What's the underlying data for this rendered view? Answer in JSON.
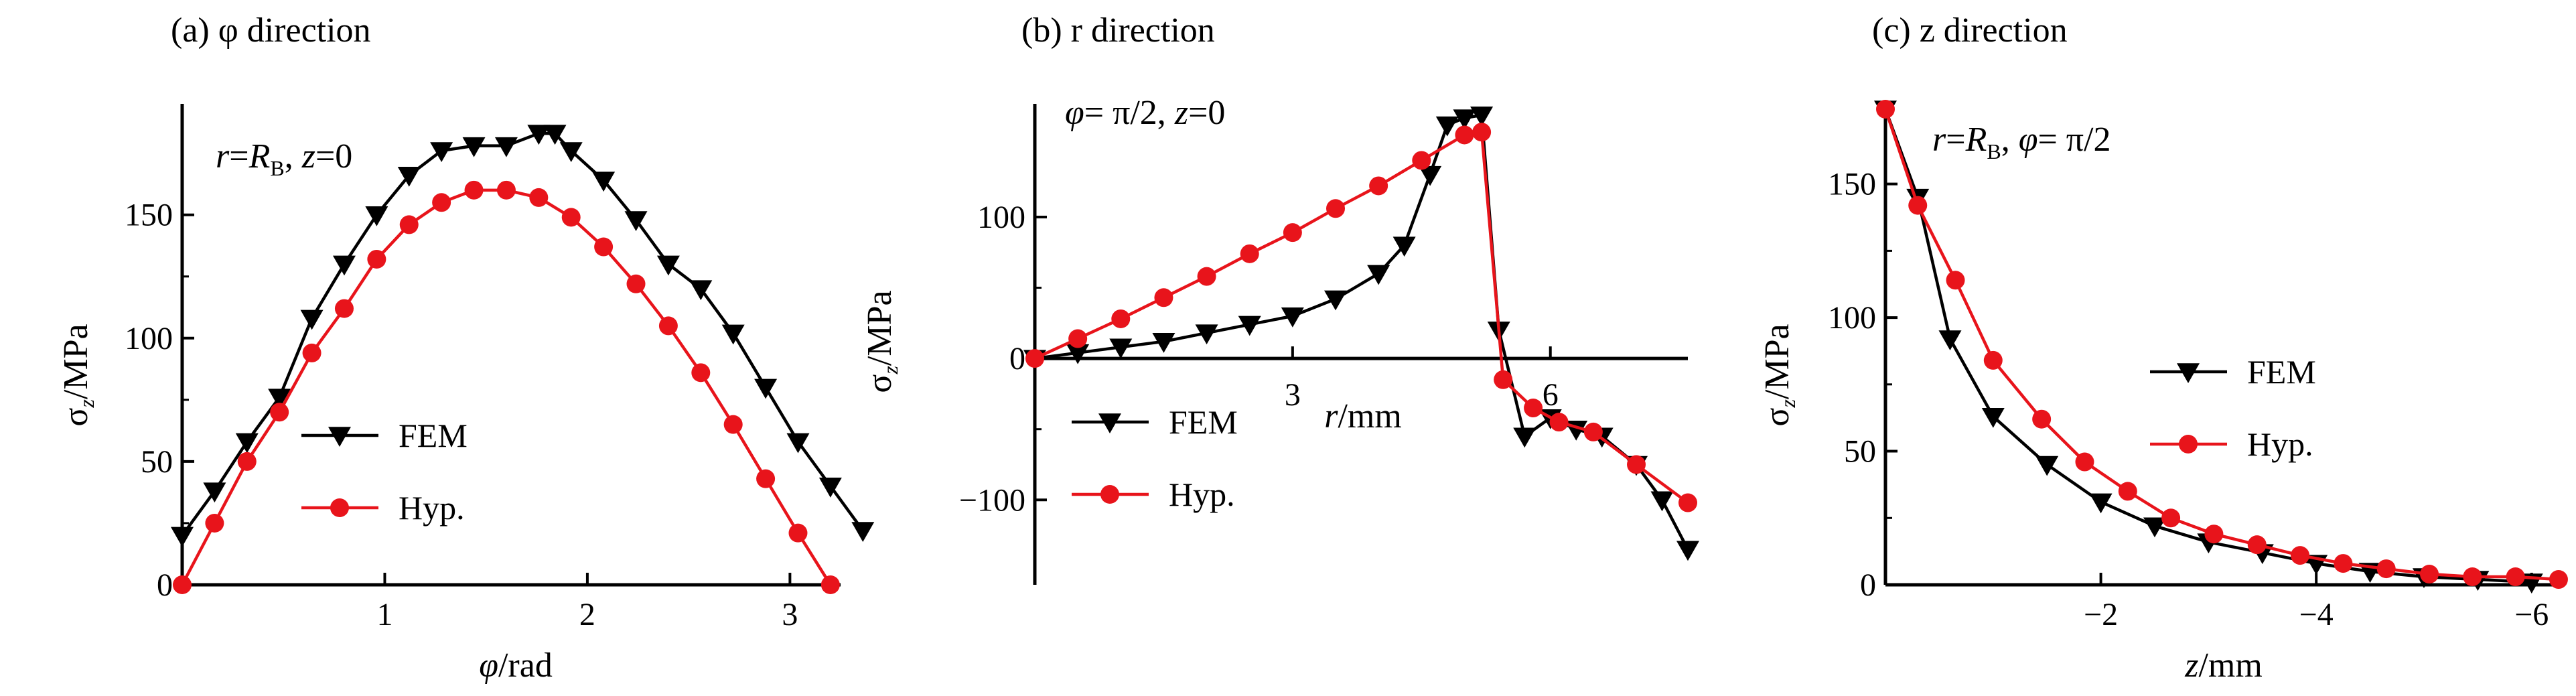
{
  "colors": {
    "fem": "#000000",
    "hyp": "#e8141b",
    "axis": "#000000"
  },
  "legend": {
    "fem_label": "FEM",
    "hyp_label": "Hyp."
  },
  "chart_data": [
    {
      "type": "line",
      "title": "(a) φ direction",
      "condition": "r=R_B, z=0",
      "xlabel": "φ/rad",
      "ylabel": "σz/MPa",
      "xlim": [
        0,
        3.25
      ],
      "ylim": [
        0,
        195
      ],
      "xticks": [
        1,
        2,
        3
      ],
      "yticks": [
        0,
        50,
        100,
        150
      ],
      "legend_position": "center-left",
      "series": [
        {
          "name": "FEM",
          "marker": "down-triangle",
          "color": "#000000",
          "points": [
            [
              0.0,
              20
            ],
            [
              0.16,
              38
            ],
            [
              0.32,
              58
            ],
            [
              0.48,
              76
            ],
            [
              0.64,
              108
            ],
            [
              0.8,
              130
            ],
            [
              0.96,
              150
            ],
            [
              1.12,
              166
            ],
            [
              1.28,
              176
            ],
            [
              1.44,
              178
            ],
            [
              1.6,
              178
            ],
            [
              1.76,
              183
            ],
            [
              1.84,
              183
            ],
            [
              1.92,
              176
            ],
            [
              2.08,
              164
            ],
            [
              2.24,
              148
            ],
            [
              2.4,
              130
            ],
            [
              2.56,
              120
            ],
            [
              2.72,
              102
            ],
            [
              2.88,
              80
            ],
            [
              3.04,
              58
            ],
            [
              3.2,
              40
            ],
            [
              3.36,
              22
            ]
          ]
        },
        {
          "name": "Hyp.",
          "marker": "circle",
          "color": "#e8141b",
          "points": [
            [
              0.0,
              0
            ],
            [
              0.16,
              25
            ],
            [
              0.32,
              50
            ],
            [
              0.48,
              70
            ],
            [
              0.64,
              94
            ],
            [
              0.8,
              112
            ],
            [
              0.96,
              132
            ],
            [
              1.12,
              146
            ],
            [
              1.28,
              155
            ],
            [
              1.44,
              160
            ],
            [
              1.6,
              160
            ],
            [
              1.76,
              157
            ],
            [
              1.92,
              149
            ],
            [
              2.08,
              137
            ],
            [
              2.24,
              122
            ],
            [
              2.4,
              105
            ],
            [
              2.56,
              86
            ],
            [
              2.72,
              65
            ],
            [
              2.88,
              43
            ],
            [
              3.04,
              21
            ],
            [
              3.2,
              0
            ]
          ]
        }
      ]
    },
    {
      "type": "line",
      "title": "(b) r direction",
      "condition": "φ= π/2,  z=0",
      "xlabel": "r/mm",
      "ylabel": "σz/MPa",
      "xlim": [
        0,
        7.6
      ],
      "ylim": [
        -160,
        180
      ],
      "xticks": [
        3,
        6
      ],
      "yticks": [
        -100,
        0,
        100
      ],
      "legend_position": "bottom-left",
      "series": [
        {
          "name": "FEM",
          "marker": "down-triangle",
          "color": "#000000",
          "points": [
            [
              0.0,
              0
            ],
            [
              0.5,
              4
            ],
            [
              1.0,
              8
            ],
            [
              1.5,
              12
            ],
            [
              2.0,
              18
            ],
            [
              2.5,
              24
            ],
            [
              3.0,
              30
            ],
            [
              3.5,
              42
            ],
            [
              4.0,
              60
            ],
            [
              4.3,
              80
            ],
            [
              4.6,
              130
            ],
            [
              4.8,
              165
            ],
            [
              5.0,
              170
            ],
            [
              5.2,
              172
            ],
            [
              5.4,
              20
            ],
            [
              5.7,
              -55
            ],
            [
              6.0,
              -42
            ],
            [
              6.3,
              -50
            ],
            [
              6.6,
              -55
            ],
            [
              7.0,
              -75
            ],
            [
              7.3,
              -100
            ],
            [
              7.6,
              -135
            ]
          ]
        },
        {
          "name": "Hyp.",
          "marker": "circle",
          "color": "#e8141b",
          "points": [
            [
              0.0,
              0
            ],
            [
              0.5,
              14
            ],
            [
              1.0,
              28
            ],
            [
              1.5,
              43
            ],
            [
              2.0,
              58
            ],
            [
              2.5,
              74
            ],
            [
              3.0,
              89
            ],
            [
              3.5,
              106
            ],
            [
              4.0,
              122
            ],
            [
              4.5,
              140
            ],
            [
              5.0,
              158
            ],
            [
              5.2,
              160
            ],
            [
              5.45,
              -15
            ],
            [
              5.8,
              -35
            ],
            [
              6.1,
              -45
            ],
            [
              6.5,
              -52
            ],
            [
              7.0,
              -75
            ],
            [
              7.6,
              -102
            ]
          ]
        }
      ]
    },
    {
      "type": "line",
      "title": "(c) z direction",
      "condition": "r=R_B, φ= π/2",
      "xlabel": "z/mm",
      "ylabel": "σz/MPa",
      "xlim": [
        0,
        -6.3
      ],
      "ylim": [
        0,
        180
      ],
      "xticks": [
        -2,
        -4,
        -6
      ],
      "yticks": [
        0,
        50,
        100,
        150
      ],
      "legend_position": "center",
      "series": [
        {
          "name": "FEM",
          "marker": "down-triangle",
          "color": "#000000",
          "points": [
            [
              0.0,
              178
            ],
            [
              -0.3,
              145
            ],
            [
              -0.6,
              92
            ],
            [
              -1.0,
              63
            ],
            [
              -1.5,
              45
            ],
            [
              -2.0,
              31
            ],
            [
              -2.5,
              22
            ],
            [
              -3.0,
              16
            ],
            [
              -3.5,
              12
            ],
            [
              -4.0,
              8
            ],
            [
              -4.5,
              5
            ],
            [
              -5.0,
              3
            ],
            [
              -5.5,
              2
            ],
            [
              -6.0,
              1
            ]
          ]
        },
        {
          "name": "Hyp.",
          "marker": "circle",
          "color": "#e8141b",
          "points": [
            [
              0.0,
              178
            ],
            [
              -0.3,
              142
            ],
            [
              -0.65,
              114
            ],
            [
              -1.0,
              84
            ],
            [
              -1.45,
              62
            ],
            [
              -1.85,
              46
            ],
            [
              -2.25,
              35
            ],
            [
              -2.65,
              25
            ],
            [
              -3.05,
              19
            ],
            [
              -3.45,
              15
            ],
            [
              -3.85,
              11
            ],
            [
              -4.25,
              8
            ],
            [
              -4.65,
              6
            ],
            [
              -5.05,
              4
            ],
            [
              -5.45,
              3
            ],
            [
              -5.85,
              3
            ],
            [
              -6.25,
              2
            ]
          ]
        }
      ]
    }
  ]
}
